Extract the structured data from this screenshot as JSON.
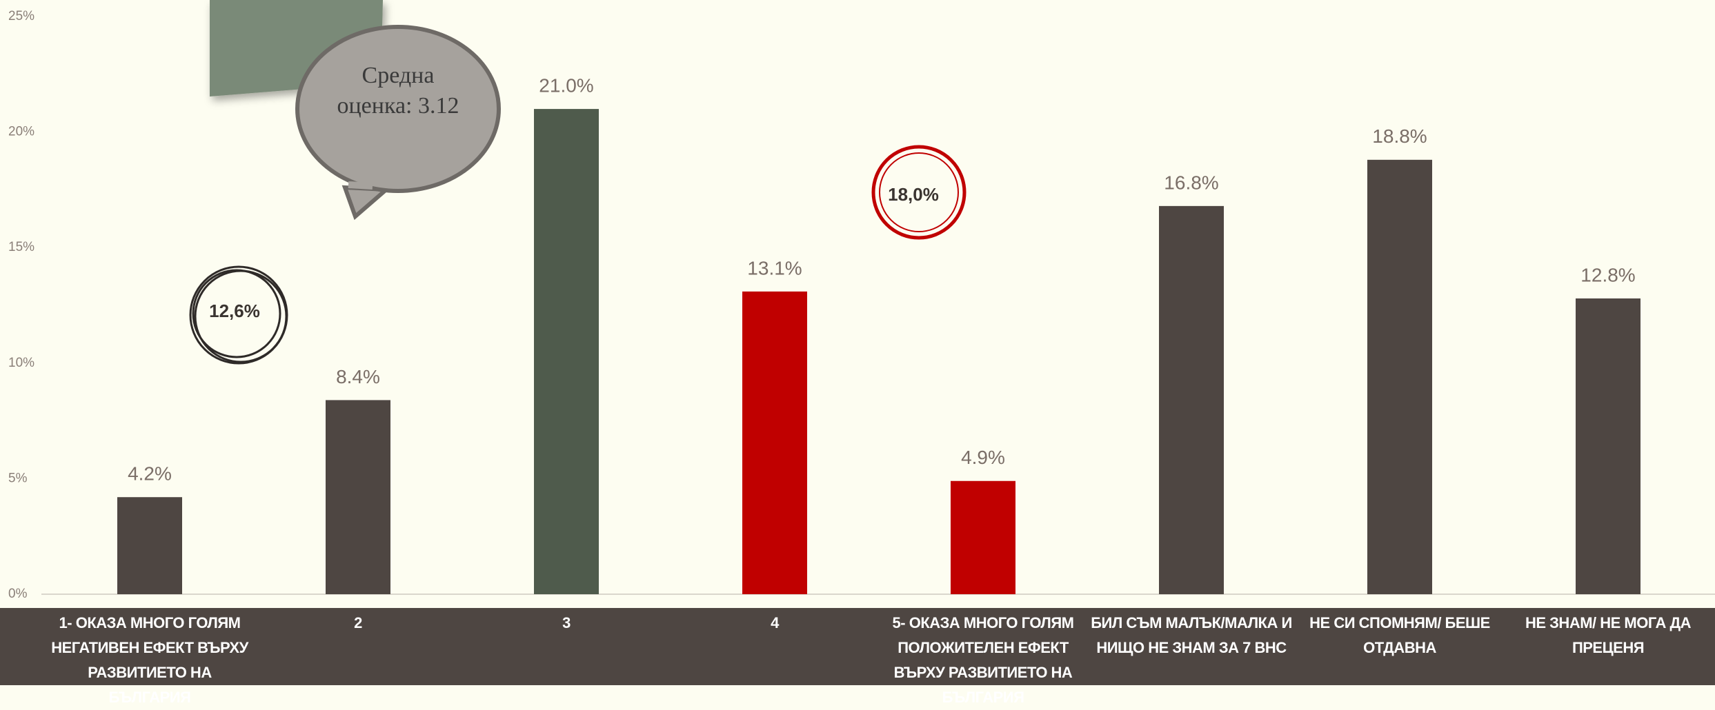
{
  "chart_data": {
    "type": "bar",
    "categories": [
      "1- ОКАЗА МНОГО ГОЛЯМ НЕГАТИВЕН ЕФЕКТ ВЪРХУ РАЗВИТИЕТО НА БЪЛГАРИЯ",
      "2",
      "3",
      "4",
      "5- ОКАЗА МНОГО ГОЛЯМ ПОЛОЖИТЕЛЕН ЕФЕКТ ВЪРХУ РАЗВИТИЕТО НА БЪЛГАРИЯ",
      "БИЛ СЪМ МАЛЪК/МАЛКА И НИЩО НЕ ЗНАМ ЗА 7 ВНС",
      "НЕ СИ СПОМНЯМ/ БЕШЕ ОТДАВНА",
      "НЕ ЗНАМ/ НЕ МОГА ДА ПРЕЦЕНЯ"
    ],
    "values": [
      4.2,
      8.4,
      21.0,
      13.1,
      4.9,
      16.8,
      18.8,
      12.8
    ],
    "value_labels": [
      "4.2%",
      "8.4%",
      "21.0%",
      "13.1%",
      "4.9%",
      "16.8%",
      "18.8%",
      "12.8%"
    ],
    "colors": [
      "#4e4642",
      "#4e4642",
      "#4f5b4c",
      "#c00000",
      "#c00000",
      "#4e4642",
      "#4e4642",
      "#4e4642"
    ],
    "ylim": [
      0,
      25
    ],
    "yticks": [
      {
        "value": 0,
        "label": "0%"
      },
      {
        "value": 5,
        "label": "5%"
      },
      {
        "value": 10,
        "label": "10%"
      },
      {
        "value": 15,
        "label": "15%"
      },
      {
        "value": 20,
        "label": "20%"
      },
      {
        "value": 25,
        "label": "25%"
      }
    ],
    "annotations": {
      "average": "Средна оценка: 3.12",
      "negative_total": "12,6%",
      "positive_total": "18,0%"
    }
  }
}
